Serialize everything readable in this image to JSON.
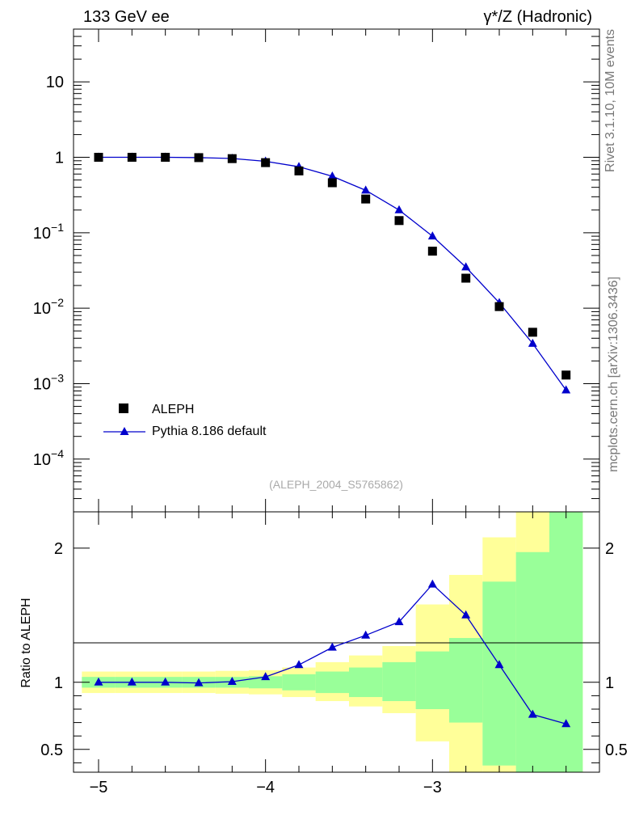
{
  "header": {
    "left_title": "133 GeV ee",
    "right_title": "γ*/Z (Hadronic)"
  },
  "side_labels": {
    "rivet": "Rivet 3.1.10,  10M events",
    "site": "mcplots.cern.ch [arXiv:1306.3436]"
  },
  "analysis_label": "(ALEPH_2004_S5765862)",
  "colors": {
    "data": "#000000",
    "mc": "#0000cc",
    "band_inner": "#99ff99",
    "band_outer": "#ffff99"
  },
  "chart_data": [
    {
      "type": "scatter",
      "panel": "main",
      "yscale": "log",
      "xlim": [
        -5.15,
        -2.0
      ],
      "ylim": [
        2e-05,
        50
      ],
      "x_ticks": [
        "−5",
        "−4",
        "−3"
      ],
      "y_ticks": [
        {
          "base": "10",
          "exp": "−4",
          "value": 0.0001
        },
        {
          "base": "10",
          "exp": "−3",
          "value": 0.001
        },
        {
          "base": "10",
          "exp": "−2",
          "value": 0.01
        },
        {
          "base": "10",
          "exp": "−1",
          "value": 0.1
        },
        {
          "base": "1",
          "exp": "",
          "value": 1
        },
        {
          "base": "10",
          "exp": "",
          "value": 10
        }
      ],
      "legend_position": "bottom-left",
      "x": [
        -5.0,
        -4.8,
        -4.6,
        -4.4,
        -4.2,
        -4.0,
        -3.8,
        -3.6,
        -3.4,
        -3.2,
        -3.0,
        -2.8,
        -2.6,
        -2.4,
        -2.2
      ],
      "series": [
        {
          "name": "ALEPH",
          "marker": "square",
          "values": [
            1.0,
            1.0,
            1.0,
            0.99,
            0.96,
            0.85,
            0.66,
            0.46,
            0.28,
            0.145,
            0.057,
            0.025,
            0.0105,
            0.0048,
            0.0013
          ]
        },
        {
          "name": "Pythia 8.186 default",
          "marker": "triangle",
          "values": [
            1.0,
            1.0,
            1.0,
            0.99,
            0.965,
            0.885,
            0.75,
            0.56,
            0.365,
            0.2,
            0.09,
            0.035,
            0.0118,
            0.0034,
            0.00082
          ]
        }
      ]
    },
    {
      "type": "line",
      "panel": "ratio",
      "ylabel": "Ratio to ALEPH",
      "xlim": [
        -5.15,
        -2.0
      ],
      "ylim": [
        0.33,
        2.27
      ],
      "y_ticks": [
        {
          "label": "0.5",
          "value": 0.5
        },
        {
          "label": "1",
          "value": 1
        },
        {
          "label": "2",
          "value": 2
        }
      ],
      "x_ticks": [
        "−5",
        "−4",
        "−3"
      ],
      "x": [
        -5.0,
        -4.8,
        -4.6,
        -4.4,
        -4.2,
        -4.0,
        -3.8,
        -3.6,
        -3.4,
        -3.2,
        -3.0,
        -2.8,
        -2.6,
        -2.4,
        -2.2
      ],
      "series": [
        {
          "name": "Pythia 8.186 default",
          "values": [
            1.0,
            1.0,
            1.0,
            0.995,
            1.005,
            1.04,
            1.13,
            1.26,
            1.35,
            1.45,
            1.73,
            1.5,
            1.13,
            0.76,
            0.69
          ]
        }
      ],
      "bands": {
        "edges": [
          -5.1,
          -4.9,
          -4.7,
          -4.5,
          -4.3,
          -4.1,
          -3.9,
          -3.7,
          -3.5,
          -3.3,
          -3.1,
          -2.9,
          -2.7,
          -2.5,
          -2.3,
          -2.1
        ],
        "inner": [
          [
            0.96,
            1.04
          ],
          [
            0.96,
            1.04
          ],
          [
            0.96,
            1.04
          ],
          [
            0.96,
            1.04
          ],
          [
            0.96,
            1.04
          ],
          [
            0.955,
            1.045
          ],
          [
            0.94,
            1.06
          ],
          [
            0.92,
            1.08
          ],
          [
            0.89,
            1.11
          ],
          [
            0.86,
            1.15
          ],
          [
            0.8,
            1.23
          ],
          [
            0.7,
            1.33
          ],
          [
            0.38,
            1.75
          ],
          [
            0.3,
            1.97
          ],
          [
            0.3,
            2.4
          ]
        ],
        "outer": [
          [
            0.92,
            1.08
          ],
          [
            0.92,
            1.08
          ],
          [
            0.92,
            1.08
          ],
          [
            0.92,
            1.08
          ],
          [
            0.915,
            1.085
          ],
          [
            0.91,
            1.09
          ],
          [
            0.89,
            1.11
          ],
          [
            0.86,
            1.15
          ],
          [
            0.82,
            1.2
          ],
          [
            0.77,
            1.27
          ],
          [
            0.56,
            1.58
          ],
          [
            0.3,
            1.8
          ],
          [
            0.3,
            2.08
          ],
          [
            0.3,
            2.4
          ],
          [
            0.3,
            2.4
          ]
        ]
      }
    }
  ]
}
